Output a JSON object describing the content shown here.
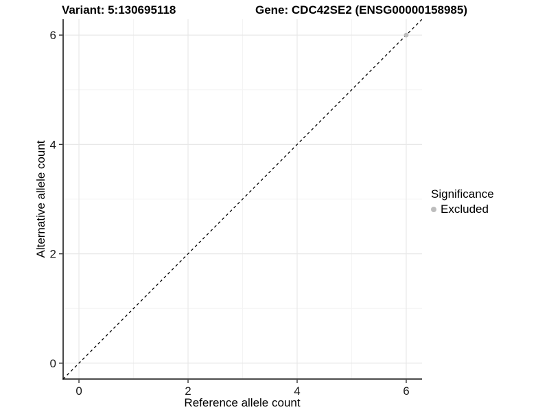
{
  "chart_data": {
    "type": "scatter",
    "titles": {
      "variant": "Variant: 5:130695118",
      "gene": "Gene: CDC42SE2 (ENSG00000158985)"
    },
    "xlabel": "Reference allele count",
    "ylabel": "Alternative allele count",
    "x_ticks": [
      0,
      2,
      4,
      6
    ],
    "y_ticks": [
      0,
      2,
      4,
      6
    ],
    "xlim": [
      -0.29,
      6.29
    ],
    "ylim": [
      -0.29,
      6.29
    ],
    "grid": "major and minor gridlines on, white panel background",
    "reference_line": {
      "kind": "identity y=x",
      "from": [
        -0.29,
        -0.29
      ],
      "to": [
        6.29,
        6.29
      ],
      "style": "dashed",
      "color": "#000000"
    },
    "series": [
      {
        "name": "Excluded",
        "color": "#bdbdbd",
        "points": [
          [
            6,
            6
          ]
        ]
      }
    ],
    "legend": {
      "title": "Significance",
      "position": "right",
      "items": [
        {
          "label": "Excluded",
          "color": "#bdbdbd"
        }
      ]
    }
  },
  "colors": {
    "grid_major": "#e8e8e8",
    "grid_minor": "#f4f4f4",
    "axis_line": "#333333",
    "tick_text": "#1a1a1a"
  }
}
